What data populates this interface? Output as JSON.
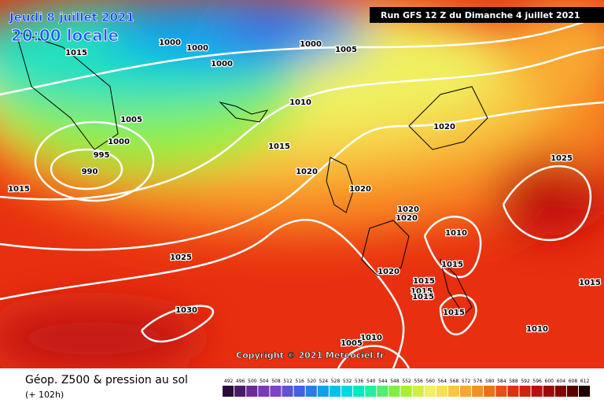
{
  "header": {
    "date": "Jeudi 8 juillet 2021",
    "time": "20:00 locale",
    "run": "Run GFS 12 Z du Dimanche 4 juillet 2021"
  },
  "isobar_labels": [
    "1015",
    "1000",
    "1000",
    "1000",
    "1000",
    "1005",
    "1010",
    "1005",
    "1000",
    "995",
    "990",
    "1015",
    "1015",
    "1020",
    "1020",
    "1020",
    "1025",
    "1020",
    "1020",
    "1010",
    "1015",
    "1025",
    "1020",
    "1015",
    "1015",
    "1015",
    "1015",
    "1015",
    "1030",
    "1010",
    "1010",
    "1005"
  ],
  "copyright": "Copyright © 2021 Meteociel.fr",
  "legend": {
    "title": "Géop. Z500 & pression au sol",
    "lead": "(+ 102h)",
    "values": [
      492,
      496,
      500,
      504,
      508,
      512,
      516,
      520,
      524,
      528,
      532,
      536,
      540,
      544,
      548,
      552,
      556,
      560,
      564,
      568,
      572,
      576,
      580,
      584,
      588,
      592,
      596,
      600,
      604,
      608,
      612
    ],
    "colors": [
      "#2a0a3a",
      "#4a1a6a",
      "#6a2a9a",
      "#7a3ab8",
      "#8040d0",
      "#6050e0",
      "#4060e8",
      "#2080f0",
      "#10a0f0",
      "#00c0f0",
      "#00d8e0",
      "#00e8c0",
      "#20f0a0",
      "#50f070",
      "#80f040",
      "#a8f030",
      "#d0f040",
      "#f0f060",
      "#f8e050",
      "#f8c840",
      "#f8a830",
      "#f89020",
      "#f07010",
      "#e85010",
      "#e03010",
      "#d02010",
      "#b81010",
      "#a00808",
      "#800000",
      "#580000",
      "#200000"
    ]
  }
}
